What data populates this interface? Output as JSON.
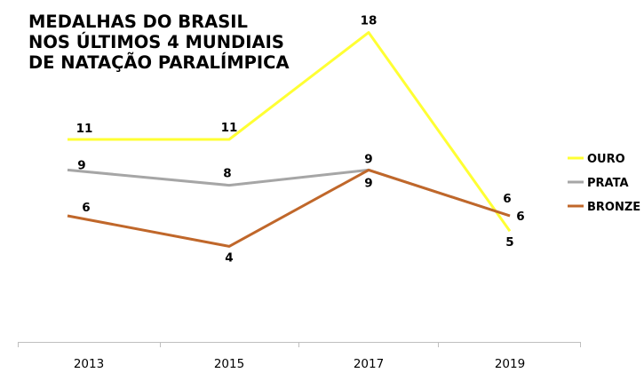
{
  "chart_data": {
    "type": "line",
    "title_lines": [
      "MEDALHAS DO BRASIL",
      "NOS ÚLTIMOS 4 MUNDIAIS",
      "DE NATAÇÃO PARALÍMPICA"
    ],
    "xlabel": "",
    "ylabel": "",
    "x": [
      "2013",
      "2015",
      "2017",
      "2019"
    ],
    "ylim": [
      0,
      20
    ],
    "grid": false,
    "legend_position": "right",
    "series": [
      {
        "name": "OURO",
        "color": "#ffff33",
        "values": [
          11,
          11,
          18,
          5
        ]
      },
      {
        "name": "PRATA",
        "color": "#a6a6a6",
        "values": [
          9,
          8,
          9,
          6
        ]
      },
      {
        "name": "BRONZE",
        "color": "#c0672a",
        "values": [
          6,
          4,
          9,
          6
        ]
      }
    ]
  }
}
